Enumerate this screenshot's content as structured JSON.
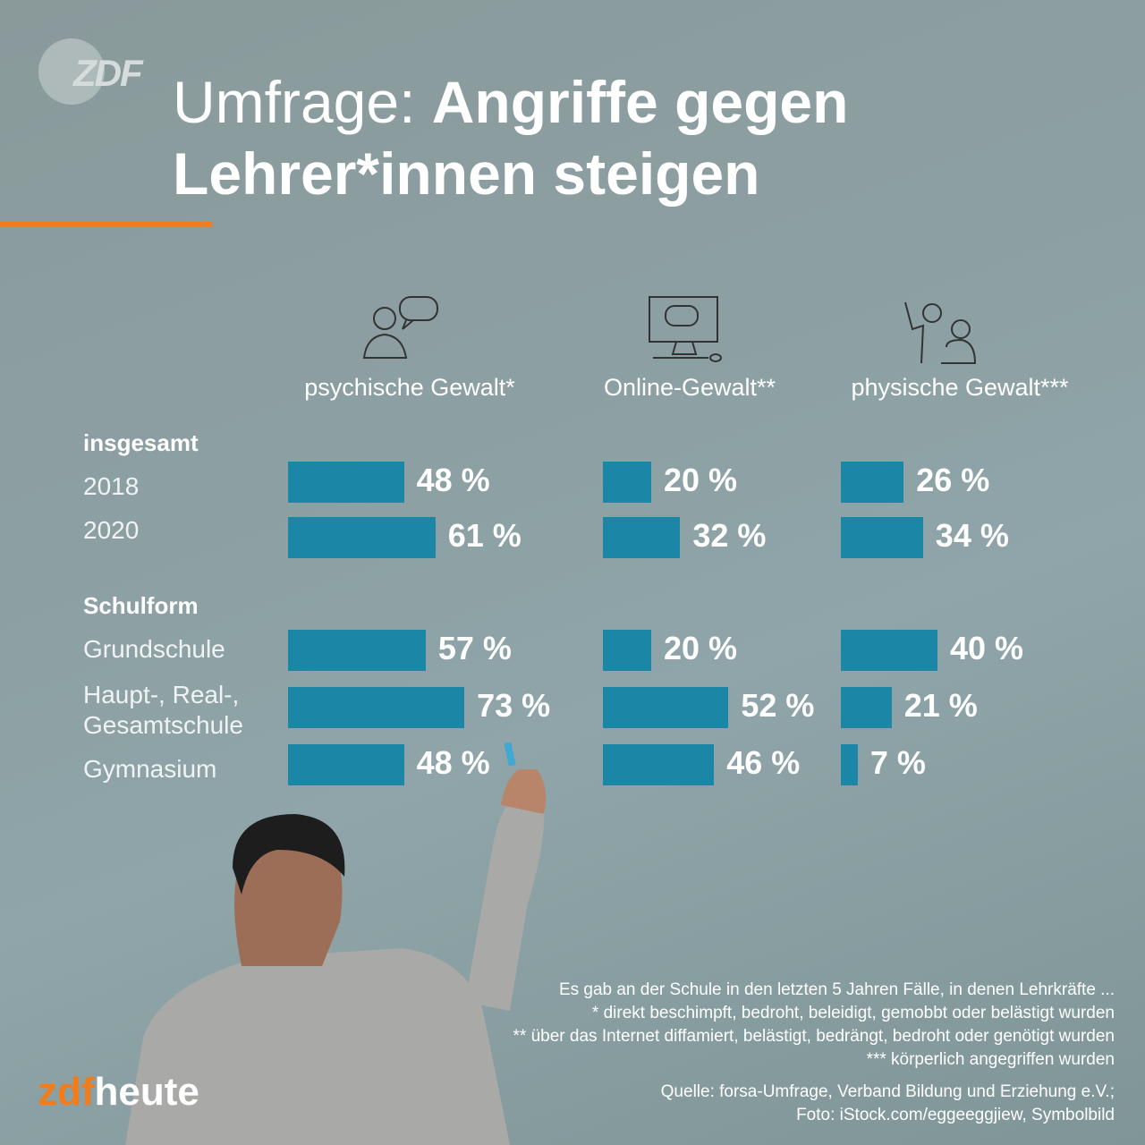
{
  "logo": "ZDF",
  "title": {
    "light": "Umfrage: ",
    "bold": "Angriffe gegen Lehrer*innen steigen"
  },
  "chart_data": {
    "type": "bar",
    "orientation": "horizontal",
    "unit": "%",
    "series": [
      {
        "name": "psychische Gewalt*",
        "icon": "person-speech-bubble-icon",
        "values": [
          48,
          61,
          57,
          73,
          48
        ]
      },
      {
        "name": "Online-Gewalt**",
        "icon": "computer-chat-icon",
        "values": [
          20,
          32,
          20,
          52,
          46
        ]
      },
      {
        "name": "physische Gewalt***",
        "icon": "fight-icon",
        "values": [
          26,
          34,
          40,
          21,
          7
        ]
      }
    ],
    "groups": [
      {
        "label": "insgesamt",
        "rows": [
          {
            "label": "2018"
          },
          {
            "label": "2020"
          }
        ]
      },
      {
        "label": "Schulform",
        "rows": [
          {
            "label": "Grundschule"
          },
          {
            "label": "Haupt-, Real-, Gesamtschule"
          },
          {
            "label": "Gymnasium"
          }
        ]
      }
    ],
    "colors": {
      "bar": "#1b86a6",
      "accent": "#f07d1a"
    }
  },
  "footnotes": [
    "Es gab an der Schule in den letzten 5 Jahren Fälle, in denen Lehrkräfte ...",
    "* direkt beschimpft, bedroht, beleidigt, gemobbt oder belästigt wurden",
    "** über das Internet diffamiert, belästigt, bedrängt, bedroht oder genötigt wurden",
    "*** körperlich angegriffen wurden"
  ],
  "source": [
    "Quelle: forsa-Umfrage, Verband Bildung und Erziehung e.V.;",
    "Foto: iStock.com/eggeeggjiew, Symbolbild"
  ],
  "brand": {
    "a": "zdf",
    "b": "heute"
  }
}
